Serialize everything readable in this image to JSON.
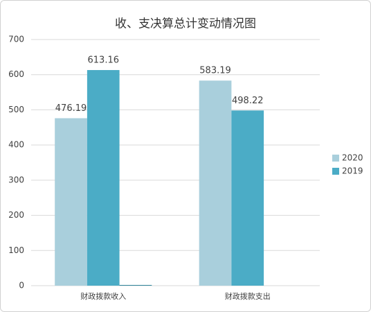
{
  "chart_data": {
    "type": "bar",
    "title": "收、支决算总计变动情况图",
    "categories": [
      "财政拨款收入",
      "财政拨款支出"
    ],
    "series": [
      {
        "name": "2020",
        "color": "#a9cfdc",
        "values": [
          476.19,
          583.19
        ]
      },
      {
        "name": "2019",
        "color": "#4bacc6",
        "values": [
          613.16,
          498.22
        ]
      },
      {
        "color": "#31859c",
        "values": [
          2,
          0
        ]
      }
    ],
    "ylim": [
      0,
      700
    ],
    "yticks": [
      0,
      100,
      200,
      300,
      400,
      500,
      600,
      700
    ],
    "grid": true,
    "legend": "right"
  }
}
